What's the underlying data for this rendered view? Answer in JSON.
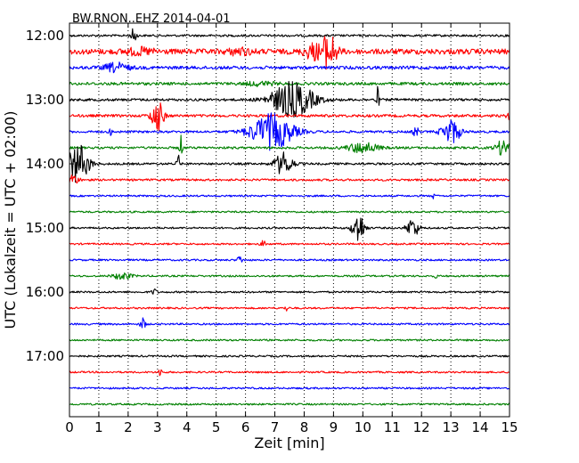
{
  "chart_data": {
    "type": "line",
    "title": "BW.RNON..EHZ 2014-04-01",
    "xlabel": "Zeit  [min]",
    "ylabel": "UTC (Lokalzeit = UTC + 02:00)",
    "xlim": [
      0,
      15
    ],
    "xticks": [
      "0",
      "1",
      "2",
      "3",
      "4",
      "5",
      "6",
      "7",
      "8",
      "9",
      "10",
      "11",
      "12",
      "13",
      "14",
      "15"
    ],
    "yticks": [
      {
        "label": "12:00",
        "trace": 0
      },
      {
        "label": "13:00",
        "trace": 4
      },
      {
        "label": "14:00",
        "trace": 8
      },
      {
        "label": "15:00",
        "trace": 12
      },
      {
        "label": "16:00",
        "trace": 16
      },
      {
        "label": "17:00",
        "trace": 20
      }
    ],
    "trace_interval_min": 15,
    "grid": "vertical-dotted",
    "colors": [
      "#000000",
      "#ff0000",
      "#0000ff",
      "#008000"
    ],
    "traces": [
      {
        "start": "12:00",
        "noise": 1.2,
        "events": [
          {
            "t": 2.2,
            "amp": 10,
            "w": 0.08
          }
        ]
      },
      {
        "start": "12:15",
        "noise": 3.0,
        "events": [
          {
            "t": 8.3,
            "amp": 8,
            "w": 0.3
          },
          {
            "t": 8.85,
            "amp": 20,
            "w": 0.25
          },
          {
            "t": 2.4,
            "amp": 3,
            "w": 0.5
          },
          {
            "t": 5.8,
            "amp": 3,
            "w": 0.4
          }
        ]
      },
      {
        "start": "12:30",
        "noise": 1.8,
        "events": [
          {
            "t": 1.6,
            "amp": 5,
            "w": 0.4
          }
        ]
      },
      {
        "start": "12:45",
        "noise": 1.6,
        "events": [
          {
            "t": 6.5,
            "amp": 2,
            "w": 0.5
          }
        ]
      },
      {
        "start": "13:00",
        "noise": 1.4,
        "events": [
          {
            "t": 7.6,
            "amp": 20,
            "w": 0.7
          },
          {
            "t": 10.5,
            "amp": 14,
            "w": 0.05
          }
        ]
      },
      {
        "start": "13:15",
        "noise": 1.5,
        "events": [
          {
            "t": 3.0,
            "amp": 18,
            "w": 0.2
          },
          {
            "t": 15.0,
            "amp": 4,
            "w": 0.1
          }
        ]
      },
      {
        "start": "13:30",
        "noise": 1.3,
        "events": [
          {
            "t": 6.9,
            "amp": 20,
            "w": 0.7
          },
          {
            "t": 13.0,
            "amp": 14,
            "w": 0.3
          },
          {
            "t": 11.8,
            "amp": 8,
            "w": 0.08
          },
          {
            "t": 1.4,
            "amp": 4,
            "w": 0.05
          }
        ]
      },
      {
        "start": "13:45",
        "noise": 1.3,
        "events": [
          {
            "t": 10.0,
            "amp": 6,
            "w": 0.5
          },
          {
            "t": 14.8,
            "amp": 9,
            "w": 0.25
          },
          {
            "t": 3.8,
            "amp": 14,
            "w": 0.05
          }
        ]
      },
      {
        "start": "14:00",
        "noise": 1.2,
        "events": [
          {
            "t": 0.3,
            "amp": 22,
            "w": 0.35
          },
          {
            "t": 7.3,
            "amp": 13,
            "w": 0.3
          },
          {
            "t": 3.7,
            "amp": 12,
            "w": 0.05
          }
        ]
      },
      {
        "start": "14:15",
        "noise": 1.2,
        "events": [
          {
            "t": 0.1,
            "amp": 6,
            "w": 0.2
          }
        ]
      },
      {
        "start": "14:30",
        "noise": 1.0,
        "events": [
          {
            "t": 12.4,
            "amp": 3,
            "w": 0.05
          }
        ]
      },
      {
        "start": "14:45",
        "noise": 1.0,
        "events": []
      },
      {
        "start": "15:00",
        "noise": 1.0,
        "events": [
          {
            "t": 9.85,
            "amp": 18,
            "w": 0.2
          },
          {
            "t": 11.7,
            "amp": 11,
            "w": 0.2
          }
        ]
      },
      {
        "start": "15:15",
        "noise": 1.0,
        "events": [
          {
            "t": 6.6,
            "amp": 3,
            "w": 0.1
          }
        ]
      },
      {
        "start": "15:30",
        "noise": 1.0,
        "events": [
          {
            "t": 5.8,
            "amp": 5,
            "w": 0.08
          }
        ]
      },
      {
        "start": "15:45",
        "noise": 1.0,
        "events": [
          {
            "t": 1.8,
            "amp": 4,
            "w": 0.3
          },
          {
            "t": 12.5,
            "amp": 2,
            "w": 0.05
          }
        ]
      },
      {
        "start": "16:00",
        "noise": 1.0,
        "events": [
          {
            "t": 2.9,
            "amp": 4,
            "w": 0.08
          }
        ]
      },
      {
        "start": "16:15",
        "noise": 1.0,
        "events": [
          {
            "t": 7.4,
            "amp": 4,
            "w": 0.05
          }
        ]
      },
      {
        "start": "16:30",
        "noise": 1.0,
        "events": [
          {
            "t": 2.5,
            "amp": 8,
            "w": 0.08
          }
        ]
      },
      {
        "start": "16:45",
        "noise": 1.0,
        "events": []
      },
      {
        "start": "17:00",
        "noise": 1.0,
        "events": []
      },
      {
        "start": "17:15",
        "noise": 1.0,
        "events": [
          {
            "t": 3.1,
            "amp": 6,
            "w": 0.05
          }
        ]
      },
      {
        "start": "17:30",
        "noise": 1.0,
        "events": []
      },
      {
        "start": "17:45",
        "noise": 1.0,
        "events": []
      }
    ]
  }
}
